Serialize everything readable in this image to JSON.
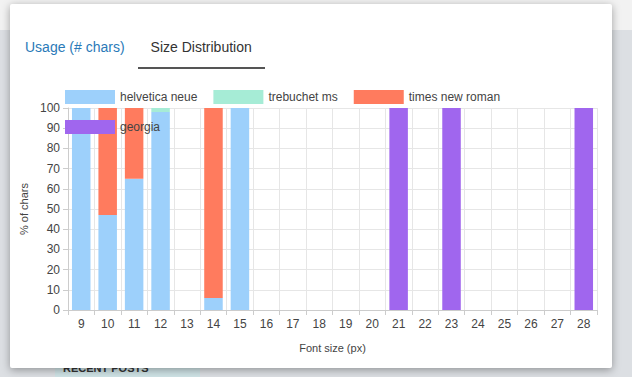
{
  "tabs": [
    {
      "label": "Usage (# chars)",
      "active": false
    },
    {
      "label": "Size Distribution",
      "active": true
    }
  ],
  "background_text": [
    "RECENT POSTS"
  ],
  "chart_data": {
    "type": "bar",
    "stacked": true,
    "grid": true,
    "legend": "top",
    "x_label": "Font size (px)",
    "y_label": "% of chars",
    "categories": [
      "9",
      "10",
      "11",
      "12",
      "13",
      "14",
      "15",
      "16",
      "17",
      "18",
      "19",
      "20",
      "21",
      "22",
      "23",
      "24",
      "25",
      "26",
      "27",
      "28"
    ],
    "ylim": [
      0,
      100
    ],
    "yticks": [
      0,
      10,
      20,
      30,
      40,
      50,
      60,
      70,
      80,
      90,
      100
    ],
    "series": [
      {
        "name": "helvetica neue",
        "color": "#9dd0fb",
        "values": [
          100,
          47,
          65,
          98,
          0,
          6,
          100,
          0,
          0,
          0,
          0,
          0,
          0,
          0,
          0,
          0,
          0,
          0,
          0,
          0
        ]
      },
      {
        "name": "trebuchet ms",
        "color": "#a6ecd6",
        "values": [
          0,
          0,
          0,
          2,
          0,
          0,
          0,
          0,
          0,
          0,
          0,
          0,
          0,
          0,
          0,
          0,
          0,
          0,
          0,
          0
        ]
      },
      {
        "name": "times new roman",
        "color": "#ff7b5e",
        "values": [
          0,
          53,
          35,
          0,
          0,
          94,
          0,
          0,
          0,
          0,
          0,
          0,
          0,
          0,
          0,
          0,
          0,
          0,
          0,
          0
        ]
      },
      {
        "name": "georgia",
        "color": "#a066ee",
        "values": [
          0,
          0,
          0,
          0,
          0,
          0,
          0,
          0,
          0,
          0,
          0,
          0,
          100,
          0,
          100,
          0,
          0,
          0,
          0,
          100
        ]
      }
    ]
  }
}
